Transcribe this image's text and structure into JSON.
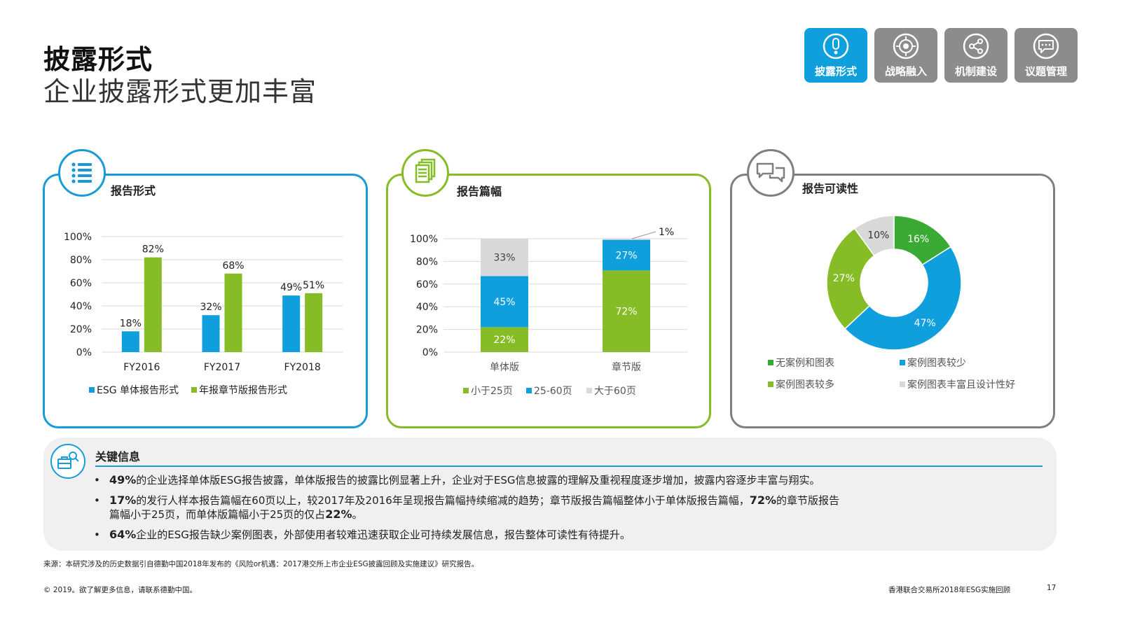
{
  "header": {
    "title": "披露形式",
    "subtitle": "企业披露形式更加丰富"
  },
  "nav": [
    {
      "label": "披露形式",
      "icon": "exclamation-icon",
      "active": true
    },
    {
      "label": "战略融入",
      "icon": "target-icon",
      "active": false
    },
    {
      "label": "机制建设",
      "icon": "share-icon",
      "active": false
    },
    {
      "label": "议题管理",
      "icon": "chat-bubble-icon",
      "active": false
    }
  ],
  "colors": {
    "blue": "#0e9fdc",
    "green": "#86bc25",
    "gray": "#d9d9d9",
    "nav_inactive": "#8c8c8c"
  },
  "panels": {
    "format": {
      "title": "报告形式",
      "icon": "list-icon"
    },
    "length": {
      "title": "报告篇幅",
      "icon": "documents-icon"
    },
    "readability": {
      "title": "报告可读性",
      "icon": "dialog-icon"
    }
  },
  "chart_data": [
    {
      "type": "bar",
      "categories": [
        "FY2016",
        "FY2017",
        "FY2018"
      ],
      "series": [
        {
          "name": "ESG 单体报告形式",
          "values": [
            18,
            32,
            49
          ],
          "color": "#0e9fdc"
        },
        {
          "name": "年报章节版报告形式",
          "values": [
            82,
            68,
            51
          ],
          "color": "#86bc25"
        }
      ],
      "data_labels": [
        [
          "18%",
          "32%",
          "49%"
        ],
        [
          "82%",
          "68%",
          "51%"
        ]
      ],
      "yticks": [
        "0%",
        "20%",
        "40%",
        "60%",
        "80%",
        "100%"
      ],
      "ylim": [
        0,
        100
      ],
      "grid": true,
      "legend": "bottom"
    },
    {
      "type": "bar",
      "stacked": true,
      "categories": [
        "单体版",
        "章节版"
      ],
      "series": [
        {
          "name": "小于25页",
          "values": [
            22,
            72
          ],
          "labels": [
            "22%",
            "72%"
          ],
          "color": "#86bc25"
        },
        {
          "name": "25-60页",
          "values": [
            45,
            27
          ],
          "labels": [
            "45%",
            "27%"
          ],
          "color": "#0e9fdc"
        },
        {
          "name": "大于60页",
          "values": [
            33,
            1
          ],
          "labels": [
            "33%",
            "1%"
          ],
          "color": "#d9d9d9"
        }
      ],
      "yticks": [
        "0%",
        "20%",
        "40%",
        "60%",
        "80%",
        "100%"
      ],
      "ylim": [
        0,
        100
      ],
      "grid": true,
      "legend": "bottom"
    },
    {
      "type": "pie",
      "donut": true,
      "slices": [
        {
          "label": "无案例和图表",
          "value": 16,
          "text": "16%",
          "color": "#3aaa35"
        },
        {
          "label": "案例图表较少",
          "value": 47,
          "text": "47%",
          "color": "#0e9fdc"
        },
        {
          "label": "案例图表较多",
          "value": 27,
          "text": "27%",
          "color": "#86bc25"
        },
        {
          "label": "案例图表丰富且设计性好",
          "value": 10,
          "text": "10%",
          "color": "#d9d9d9"
        }
      ],
      "legend": "bottom"
    }
  ],
  "key_info": {
    "title": "关键信息",
    "icon": "briefcase-search-icon",
    "bullets": [
      {
        "bold": "49%",
        "text": "的企业选择单体版ESG报告披露，单体版报告的披露比例显著上升，企业对于ESG信息披露的理解及重视程度逐步增加，披露内容逐步丰富与翔实。"
      },
      {
        "bold": "17%",
        "text": "的发行人样本报告篇幅在60页以上，较2017年及2016年呈现报告篇幅持续缩减的趋势；章节版报告篇幅整体小于单体版报告篇幅，",
        "bold2": "72%",
        "text2": "的章节版报告",
        "text3": "篇幅小于25页，而单体版篇幅小于25页的仅占",
        "bold3": "22%",
        "text4": "。"
      },
      {
        "bold": "64%",
        "text": "企业的ESG报告缺少案例图表，外部使用者较难迅速获取企业可持续发展信息，报告整体可读性有待提升。"
      }
    ]
  },
  "footer": {
    "source": "来源：本研究涉及的历史数据引自德勤中国2018年发布的《风险or机遇：2017港交所上市企业ESG披露回顾及实施建议》研究报告。",
    "copyright": "© 2019。欲了解更多信息，请联系德勤中国。",
    "report_name": "香港联合交易所2018年ESG实施回顾",
    "page": "17"
  }
}
